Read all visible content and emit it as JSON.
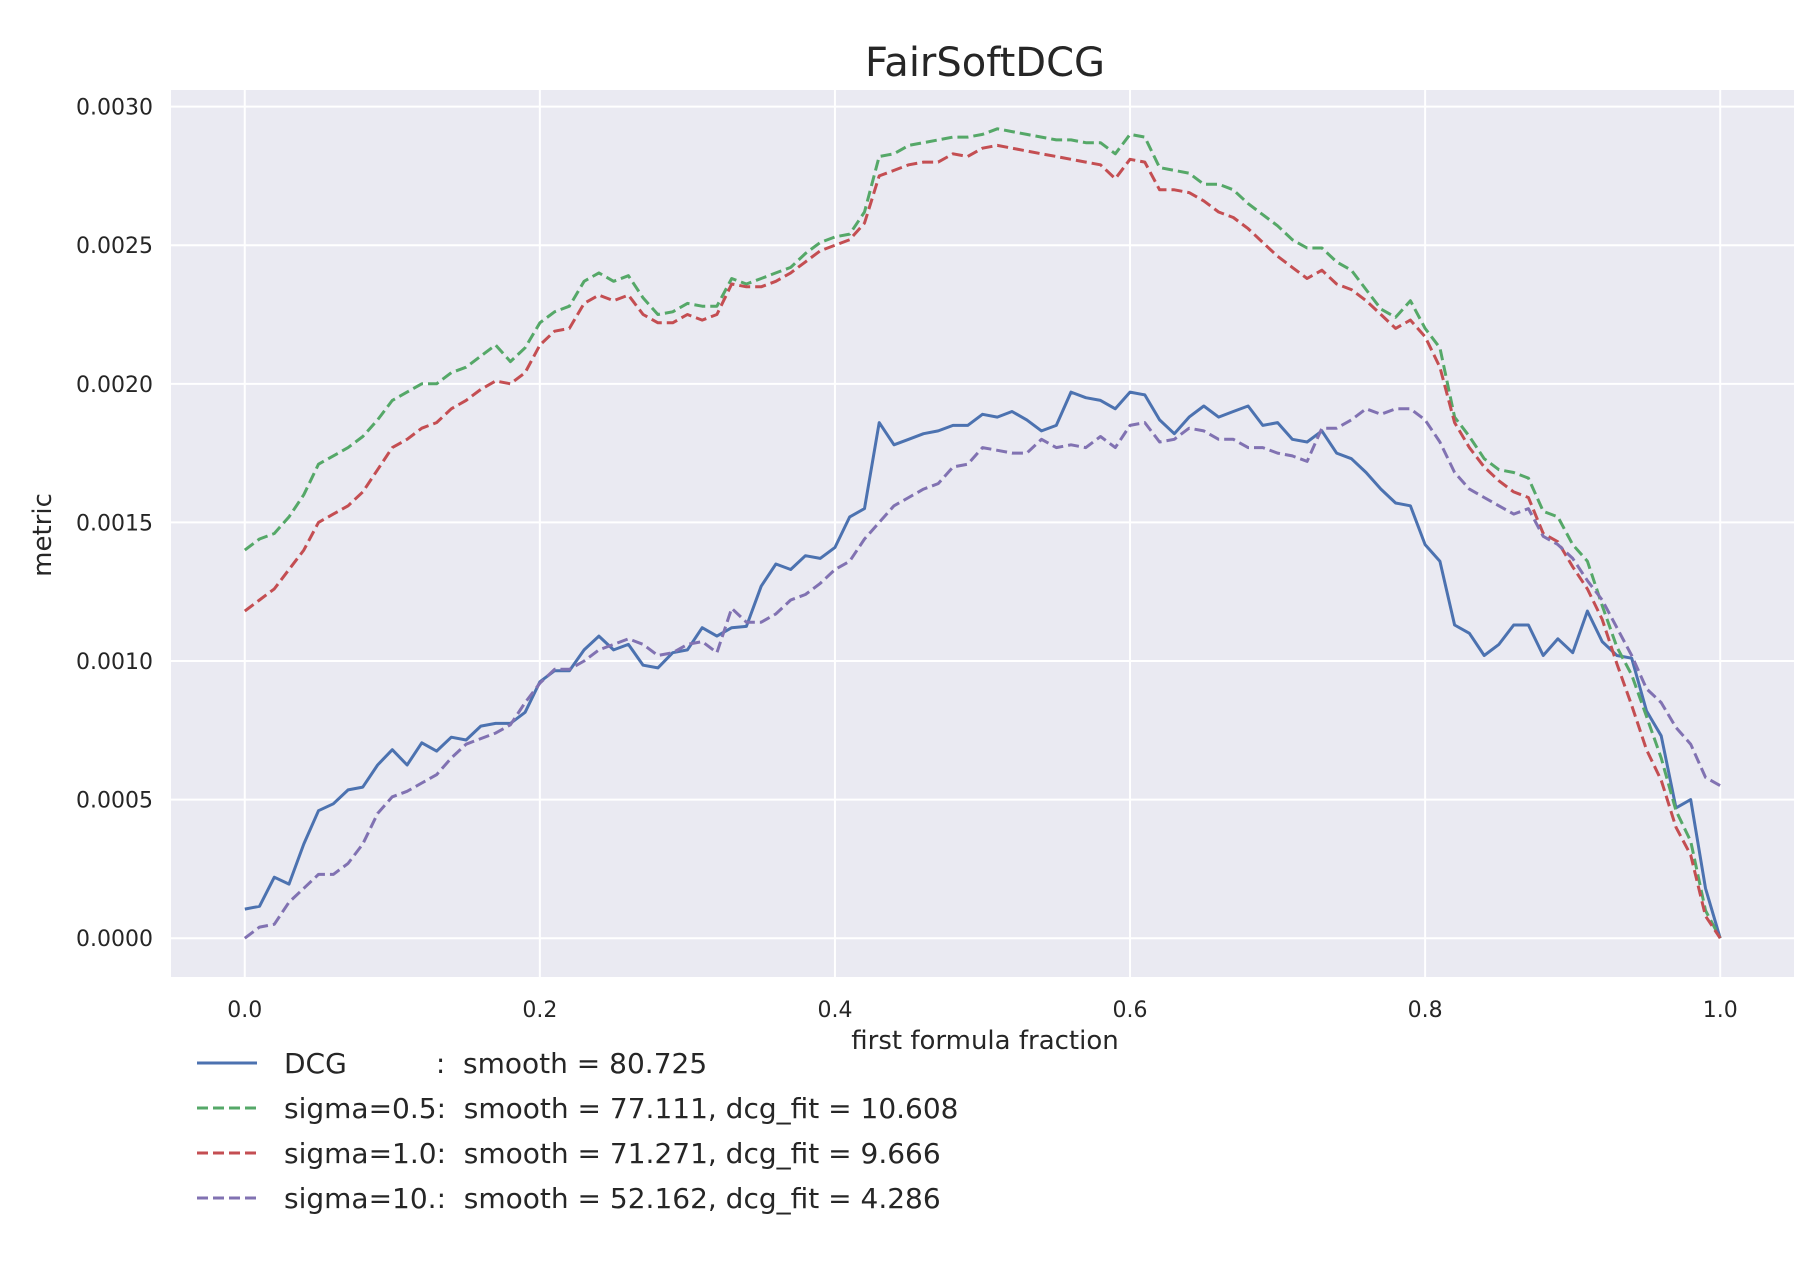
{
  "chart_data": {
    "type": "line",
    "title": "FairSoftDCG",
    "xlabel": "first formula fraction",
    "ylabel": "metric",
    "xlim": [
      -0.05,
      1.05
    ],
    "ylim": [
      -0.00014,
      0.00306
    ],
    "xticks": [
      0.0,
      0.2,
      0.4,
      0.6,
      0.8,
      1.0
    ],
    "xtick_labels": [
      "0.0",
      "0.2",
      "0.4",
      "0.6",
      "0.8",
      "1.0"
    ],
    "yticks": [
      0.0,
      0.0005,
      0.001,
      0.0015,
      0.002,
      0.0025,
      0.003
    ],
    "ytick_labels": [
      "0.0000",
      "0.0005",
      "0.0010",
      "0.0015",
      "0.0020",
      "0.0025",
      "0.0030"
    ],
    "grid": true,
    "legend_position": "below-left",
    "x": [
      0.0,
      0.01,
      0.02,
      0.03,
      0.04,
      0.05,
      0.06,
      0.07,
      0.08,
      0.09,
      0.1,
      0.11,
      0.12,
      0.13,
      0.14,
      0.15,
      0.16,
      0.17,
      0.18,
      0.19,
      0.2,
      0.21,
      0.22,
      0.23,
      0.24,
      0.25,
      0.26,
      0.27,
      0.28,
      0.29,
      0.3,
      0.31,
      0.32,
      0.33,
      0.34,
      0.35,
      0.36,
      0.37,
      0.38,
      0.39,
      0.4,
      0.41,
      0.42,
      0.43,
      0.44,
      0.45,
      0.46,
      0.47,
      0.48,
      0.49,
      0.5,
      0.51,
      0.52,
      0.53,
      0.54,
      0.55,
      0.56,
      0.57,
      0.58,
      0.59,
      0.6,
      0.61,
      0.62,
      0.63,
      0.64,
      0.65,
      0.66,
      0.67,
      0.68,
      0.69,
      0.7,
      0.71,
      0.72,
      0.73,
      0.74,
      0.75,
      0.76,
      0.77,
      0.78,
      0.79,
      0.8,
      0.81,
      0.82,
      0.83,
      0.84,
      0.85,
      0.86,
      0.87,
      0.88,
      0.89,
      0.9,
      0.91,
      0.92,
      0.93,
      0.94,
      0.95,
      0.96,
      0.97,
      0.98,
      0.99,
      1.0
    ],
    "series": [
      {
        "name": "DCG",
        "legend_label": "DCG          :  smooth = 80.725",
        "color": "#4c72b0",
        "dash": "solid",
        "values": [
          0.000105,
          0.000115,
          0.00022,
          0.000195,
          0.00034,
          0.00046,
          0.000485,
          0.000535,
          0.000545,
          0.000625,
          0.00068,
          0.000625,
          0.000705,
          0.000675,
          0.000725,
          0.000715,
          0.000765,
          0.000775,
          0.000775,
          0.000815,
          0.000925,
          0.000965,
          0.000965,
          0.00104,
          0.00109,
          0.00104,
          0.00106,
          0.000985,
          0.000975,
          0.00103,
          0.00104,
          0.00112,
          0.00109,
          0.00112,
          0.001125,
          0.00127,
          0.00135,
          0.00133,
          0.00138,
          0.00137,
          0.00141,
          0.00152,
          0.00155,
          0.00186,
          0.00178,
          0.0018,
          0.00182,
          0.00183,
          0.00185,
          0.00185,
          0.00189,
          0.00188,
          0.0019,
          0.00187,
          0.00183,
          0.00185,
          0.00197,
          0.00195,
          0.00194,
          0.00191,
          0.00197,
          0.00196,
          0.00187,
          0.00182,
          0.00188,
          0.00192,
          0.00188,
          0.0019,
          0.00192,
          0.00185,
          0.00186,
          0.0018,
          0.00179,
          0.00183,
          0.00175,
          0.00173,
          0.00168,
          0.00162,
          0.00157,
          0.00156,
          0.00142,
          0.00136,
          0.00113,
          0.0011,
          0.00102,
          0.00106,
          0.00113,
          0.00113,
          0.00102,
          0.00108,
          0.00103,
          0.00118,
          0.00107,
          0.00102,
          0.00101,
          0.00082,
          0.00073,
          0.00047,
          0.0005,
          0.00018,
          0.0
        ]
      },
      {
        "name": "sigma=0.5",
        "legend_label": "sigma=0.5:  smooth = 77.111, dcg_fit = 10.608",
        "color": "#55a868",
        "dash": "dashed",
        "values": [
          0.0014,
          0.00144,
          0.00146,
          0.00152,
          0.0016,
          0.00171,
          0.00174,
          0.00177,
          0.00181,
          0.00187,
          0.00194,
          0.00197,
          0.002,
          0.002,
          0.00204,
          0.00206,
          0.0021,
          0.00214,
          0.00208,
          0.00213,
          0.00222,
          0.00226,
          0.00228,
          0.00237,
          0.0024,
          0.00237,
          0.00239,
          0.00231,
          0.00225,
          0.00226,
          0.00229,
          0.00228,
          0.00228,
          0.00238,
          0.00236,
          0.00238,
          0.0024,
          0.00242,
          0.00247,
          0.00251,
          0.00253,
          0.00254,
          0.00262,
          0.00282,
          0.00283,
          0.00286,
          0.00287,
          0.00288,
          0.00289,
          0.00289,
          0.0029,
          0.00292,
          0.00291,
          0.0029,
          0.00289,
          0.00288,
          0.00288,
          0.00287,
          0.00287,
          0.00283,
          0.0029,
          0.00289,
          0.00278,
          0.00277,
          0.00276,
          0.00272,
          0.00272,
          0.0027,
          0.00265,
          0.00261,
          0.00257,
          0.00252,
          0.00249,
          0.00249,
          0.00244,
          0.00241,
          0.00234,
          0.00227,
          0.00224,
          0.0023,
          0.0022,
          0.00213,
          0.00188,
          0.00181,
          0.00173,
          0.00169,
          0.00168,
          0.00166,
          0.00154,
          0.00152,
          0.00142,
          0.00136,
          0.0012,
          0.00105,
          0.00095,
          0.0008,
          0.00065,
          0.00046,
          0.00035,
          0.0001,
          0.0
        ]
      },
      {
        "name": "sigma=1.0",
        "legend_label": "sigma=1.0:  smooth = 71.271, dcg_fit = 9.666",
        "color": "#c44e52",
        "dash": "dashed",
        "values": [
          0.00118,
          0.00122,
          0.00126,
          0.00133,
          0.0014,
          0.0015,
          0.00153,
          0.00156,
          0.00161,
          0.00169,
          0.00177,
          0.0018,
          0.00184,
          0.00186,
          0.00191,
          0.00194,
          0.00198,
          0.00201,
          0.002,
          0.00204,
          0.00214,
          0.00219,
          0.0022,
          0.00229,
          0.00232,
          0.0023,
          0.00232,
          0.00225,
          0.00222,
          0.00222,
          0.00225,
          0.00223,
          0.00225,
          0.00236,
          0.00235,
          0.00235,
          0.00237,
          0.0024,
          0.00244,
          0.00248,
          0.0025,
          0.00252,
          0.00258,
          0.00275,
          0.00277,
          0.00279,
          0.0028,
          0.0028,
          0.00283,
          0.00282,
          0.00285,
          0.00286,
          0.00285,
          0.00284,
          0.00283,
          0.00282,
          0.00281,
          0.0028,
          0.00279,
          0.00274,
          0.00281,
          0.0028,
          0.0027,
          0.0027,
          0.00269,
          0.00266,
          0.00262,
          0.0026,
          0.00256,
          0.00251,
          0.00246,
          0.00242,
          0.00238,
          0.00241,
          0.00236,
          0.00234,
          0.0023,
          0.00225,
          0.0022,
          0.00223,
          0.00217,
          0.00206,
          0.00186,
          0.00177,
          0.0017,
          0.00165,
          0.00161,
          0.00159,
          0.00146,
          0.00143,
          0.00134,
          0.00126,
          0.00115,
          0.00099,
          0.00084,
          0.00068,
          0.00057,
          0.0004,
          0.0003,
          8e-05,
          0.0
        ]
      },
      {
        "name": "sigma=10.",
        "legend_label": "sigma=10.:  smooth = 52.162, dcg_fit = 4.286",
        "color": "#8172b2",
        "dash": "dashed",
        "values": [
          0.0,
          4e-05,
          5e-05,
          0.00013,
          0.00018,
          0.00023,
          0.00023,
          0.00027,
          0.00034,
          0.00045,
          0.00051,
          0.00053,
          0.00056,
          0.00059,
          0.00065,
          0.0007,
          0.00072,
          0.00074,
          0.00077,
          0.00085,
          0.00092,
          0.00097,
          0.00097,
          0.001,
          0.00104,
          0.00106,
          0.00108,
          0.00106,
          0.00102,
          0.00103,
          0.00106,
          0.00107,
          0.00103,
          0.00119,
          0.00114,
          0.00114,
          0.00117,
          0.00122,
          0.00124,
          0.00128,
          0.00133,
          0.00136,
          0.00144,
          0.0015,
          0.00156,
          0.00159,
          0.00162,
          0.00164,
          0.0017,
          0.00171,
          0.00177,
          0.00176,
          0.00175,
          0.00175,
          0.0018,
          0.00177,
          0.00178,
          0.00177,
          0.00181,
          0.00177,
          0.00185,
          0.00186,
          0.00179,
          0.0018,
          0.00184,
          0.00183,
          0.0018,
          0.0018,
          0.00177,
          0.00177,
          0.00175,
          0.00174,
          0.00172,
          0.00184,
          0.00184,
          0.00187,
          0.00191,
          0.00189,
          0.00191,
          0.00191,
          0.00187,
          0.00179,
          0.00168,
          0.00162,
          0.00159,
          0.00156,
          0.00153,
          0.00155,
          0.00145,
          0.00142,
          0.00137,
          0.00129,
          0.00122,
          0.00112,
          0.00102,
          0.0009,
          0.00085,
          0.00076,
          0.0007,
          0.00058,
          0.00055
        ]
      }
    ]
  }
}
